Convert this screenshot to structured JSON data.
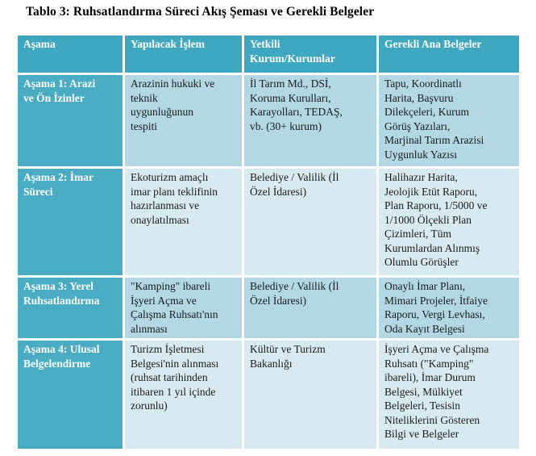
{
  "title": "Tablo 3: Ruhsatlandırma Süreci Akış Şeması ve Gerekli Belgeler",
  "table": {
    "columns": [
      "Aşama",
      "Yapılacak İşlem",
      "Yetkili\nKurum/Kurumlar",
      "Gerekli Ana Belgeler"
    ],
    "rows": [
      {
        "stage": "Aşama 1: Arazi\nve Ön İzinler",
        "action": "Arazinin hukuki ve\nteknik\nuygunluğunun\ntespiti",
        "authority": "İl Tarım  Md., DSİ,\nKoruma Kurulları,\nKarayolları, TEDAŞ,\nvb. (30+ kurum)",
        "documents": "Tapu, Koordinatlı\nHarita, Başvuru\nDilekçeleri, Kurum\nGörüş Yazıları,\nMarjinal Tarım Arazisi\nUygunluk Yazısı"
      },
      {
        "stage": "Aşama 2: İmar\nSüreci",
        "action": "Ekoturizm amaçlı\nimar planı teklifinin\nhazırlanması ve\nonaylatılması",
        "authority": "Belediye / Valilik (İl\nÖzel İdaresi)",
        "documents": "Halihazır Harita,\nJeolojik Etüt Raporu,\nPlan Raporu, 1/5000 ve\n1/1000 Ölçekli Plan\nÇizimleri, Tüm\nKurumlardan Alınmış\nOlumlu Görüşler"
      },
      {
        "stage": "Aşama 3: Yerel\nRuhsatlandırma",
        "action": "\"Kamping\" ibareli\nİşyeri Açma ve\nÇalışma Ruhsatı'nın\nalınması",
        "authority": "Belediye / Valilik (İl\nÖzel İdaresi)",
        "documents": "Onaylı İmar Planı,\nMimari Projeler, İtfaiye\nRaporu, Vergi Levhası,\nOda Kayıt Belgesi"
      },
      {
        "stage": "Aşama 4: Ulusal\nBelgelendirme",
        "action": "Turizm İşletmesi\nBelgesi'nin alınması\n(ruhsat tarihinden\nitibaren 1 yıl içinde\nzorunlu)",
        "authority": "Kültür ve Turizm\nBakanlığı",
        "documents": "İşyeri Açma ve Çalışma\nRuhsatı (\"Kamping\"\nibareli), İmar Durum\nBelgesi, Mülkiyet\nBelgeleri, Tesisin\nNiteliklerini Gösteren\nBilgi ve Belgeler"
      }
    ],
    "colors": {
      "header_bg": "#3fa7c0",
      "stub_bg": "#4aacc2",
      "band_dark": "#b1d8e3",
      "band_light": "#d8eaf1",
      "border": "#ffffff",
      "header_text": "#ffffff",
      "body_text": "#1b1b1b"
    }
  }
}
